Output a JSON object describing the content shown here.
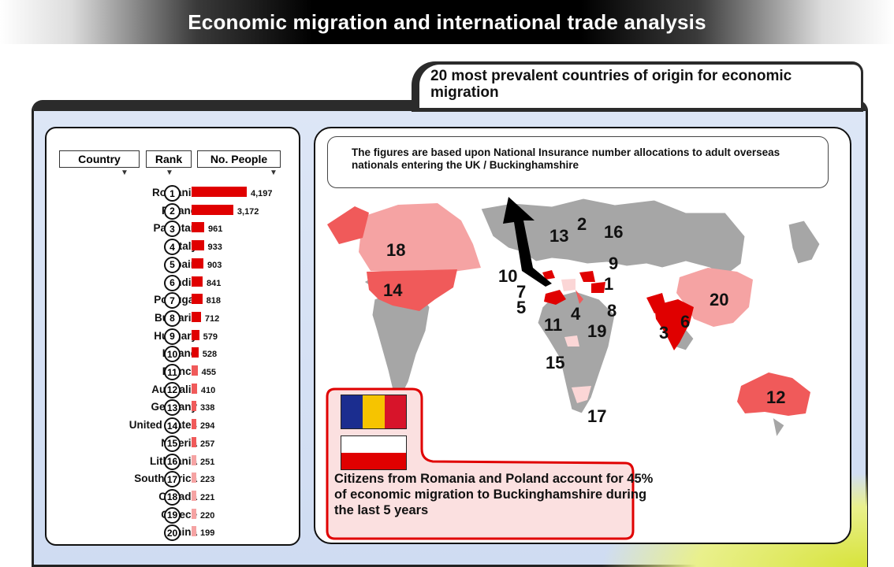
{
  "page_title": "Economic migration and international trade analysis",
  "panel_title": "20 most prevalent countries of origin for economic migration",
  "table": {
    "headers": [
      "Country",
      "Rank",
      "No. People"
    ],
    "rows": [
      {
        "country": "Romania",
        "rank": "1",
        "value": "4,197",
        "count": 4197
      },
      {
        "country": "Poland",
        "rank": "2",
        "value": "3,172",
        "count": 3172
      },
      {
        "country": "Pakistan",
        "rank": "3",
        "value": "961",
        "count": 961
      },
      {
        "country": "Italy",
        "rank": "4",
        "value": "933",
        "count": 933
      },
      {
        "country": "Spain",
        "rank": "5",
        "value": "903",
        "count": 903
      },
      {
        "country": "India",
        "rank": "6",
        "value": "841",
        "count": 841
      },
      {
        "country": "Portugal",
        "rank": "7",
        "value": "818",
        "count": 818
      },
      {
        "country": "Bulgaria",
        "rank": "8",
        "value": "712",
        "count": 712
      },
      {
        "country": "Hungary",
        "rank": "9",
        "value": "579",
        "count": 579
      },
      {
        "country": "Ireland",
        "rank": "10",
        "value": "528",
        "count": 528
      },
      {
        "country": "France",
        "rank": "11",
        "value": "455",
        "count": 455
      },
      {
        "country": "Australia",
        "rank": "12",
        "value": "410",
        "count": 410
      },
      {
        "country": "Germany",
        "rank": "13",
        "value": "338",
        "count": 338
      },
      {
        "country": "United States",
        "rank": "14",
        "value": "294",
        "count": 294
      },
      {
        "country": "Nigeria",
        "rank": "15",
        "value": "257",
        "count": 257
      },
      {
        "country": "Lithuania",
        "rank": "16",
        "value": "251",
        "count": 251
      },
      {
        "country": "South Africa",
        "rank": "17",
        "value": "223",
        "count": 223
      },
      {
        "country": "Canada",
        "rank": "18",
        "value": "221",
        "count": 221
      },
      {
        "country": "Greece",
        "rank": "19",
        "value": "220",
        "count": 220
      },
      {
        "country": "China",
        "rank": "20",
        "value": "199",
        "count": 199
      }
    ]
  },
  "note": "The figures are based upon National Insurance number allocations to adult overseas nationals entering the UK / Buckinghamshire",
  "map_labels": [
    "18",
    "14",
    "13",
    "2",
    "16",
    "9",
    "10",
    "1",
    "7",
    "5",
    "11",
    "4",
    "8",
    "19",
    "15",
    "20",
    "6",
    "3",
    "12",
    "17"
  ],
  "callout": "Citizens from Romania and Poland account for 45% of economic migration to Buckinghamshire during the last 5 years",
  "colors": {
    "dark_red": "#e00000",
    "mid_red": "#f05a5a",
    "light_red": "#f5a3a3",
    "pale_red": "#fbd6d6",
    "land_grey": "#a6a6a6"
  }
}
